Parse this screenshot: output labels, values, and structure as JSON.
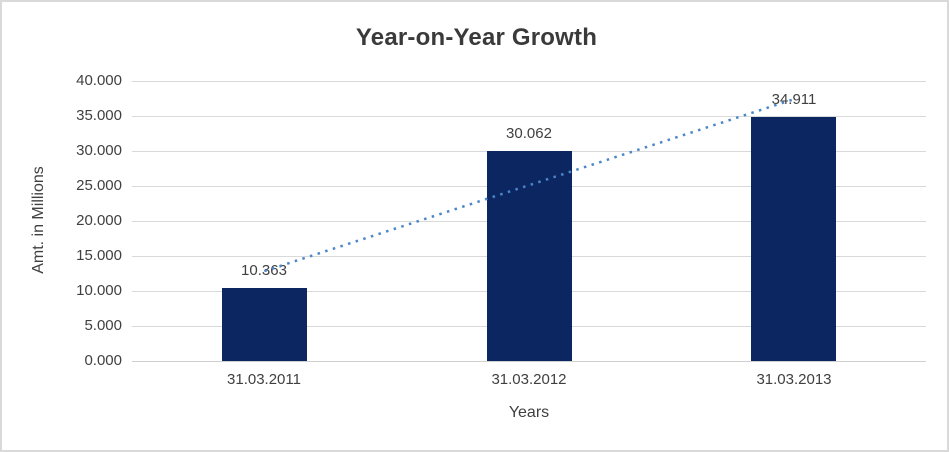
{
  "chart_data": {
    "type": "bar",
    "title": "Year-on-Year Growth",
    "xlabel": "Years",
    "ylabel": "Amt. in Millions",
    "categories": [
      "31.03.2011",
      "31.03.2012",
      "31.03.2013"
    ],
    "values": [
      10.363,
      30.062,
      34.911
    ],
    "data_labels": [
      "10.363",
      "30.062",
      "34.911"
    ],
    "ylim": [
      0,
      40
    ],
    "ytick_step": 5,
    "ytick_labels": [
      "0.000",
      "5.000",
      "10.000",
      "15.000",
      "20.000",
      "25.000",
      "30.000",
      "35.000",
      "40.000"
    ],
    "grid": true,
    "legend": "none",
    "bar_color": "#0c2661",
    "gridline_color": "#d9d9d9",
    "text_color": "#404040",
    "title_color": "#3a3a3a",
    "frame_border_color": "#d9d9d9",
    "trendline": {
      "type": "linear",
      "style": "dotted",
      "color": "#4a86c8",
      "start_value": 12.84,
      "end_value": 37.39
    }
  }
}
